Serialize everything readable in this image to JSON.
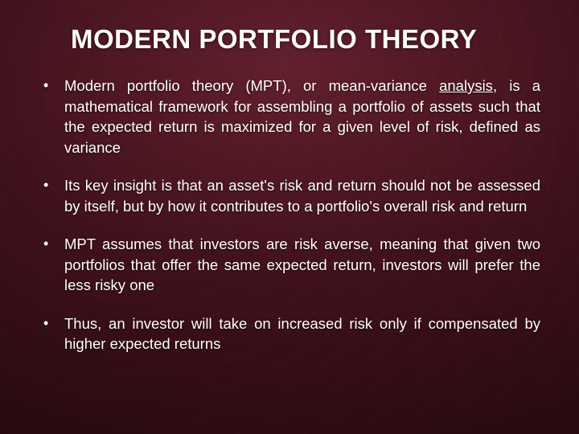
{
  "title": "MODERN PORTFOLIO THEORY",
  "bullets": [
    {
      "pre": "Modern portfolio theory (MPT), or mean-variance ",
      "underlined": "analysis",
      "post": ", is a mathematical framework for assembling a portfolio of assets such that the expected return is maximized for a given level of risk, defined as variance"
    },
    {
      "pre": "Its key insight is that an asset's risk and return should not be assessed by itself, but by how it contributes to a portfolio's overall risk and return",
      "underlined": "",
      "post": ""
    },
    {
      "pre": "MPT assumes that investors are risk averse, meaning that given two portfolios that offer the same expected return, investors will prefer the less risky one",
      "underlined": "",
      "post": ""
    },
    {
      "pre": "Thus, an investor will take on increased risk only if compensated by higher expected returns",
      "underlined": "",
      "post": ""
    }
  ],
  "colors": {
    "text": "#ffffff",
    "bg_inner": "#7a2d3c",
    "bg_outer": "#1c060a"
  },
  "typography": {
    "title_fontsize": 33,
    "body_fontsize": 18.5,
    "font_family": "Arial"
  }
}
